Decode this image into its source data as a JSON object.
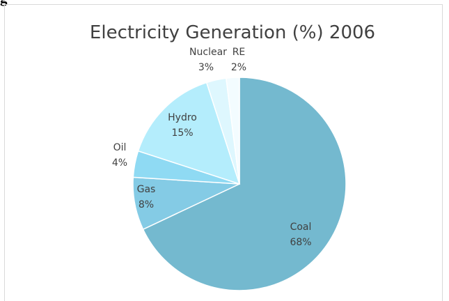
{
  "corner_text": "g",
  "chart_data": {
    "type": "pie",
    "title": "Electricity Generation (%) 2006",
    "categories": [
      "Coal",
      "Gas",
      "Oil",
      "Hydro",
      "Nuclear",
      "RE"
    ],
    "values": [
      68,
      8,
      4,
      15,
      3,
      2
    ],
    "value_labels": [
      "68%",
      "8%",
      "4%",
      "15%",
      "3%",
      "2%"
    ],
    "colors": [
      "#74b9cf",
      "#84cbe5",
      "#8fdaf3",
      "#b4edfc",
      "#def7fe",
      "#f3fcff"
    ],
    "start_angle_deg": 0,
    "direction": "clockwise",
    "legend": "none"
  }
}
